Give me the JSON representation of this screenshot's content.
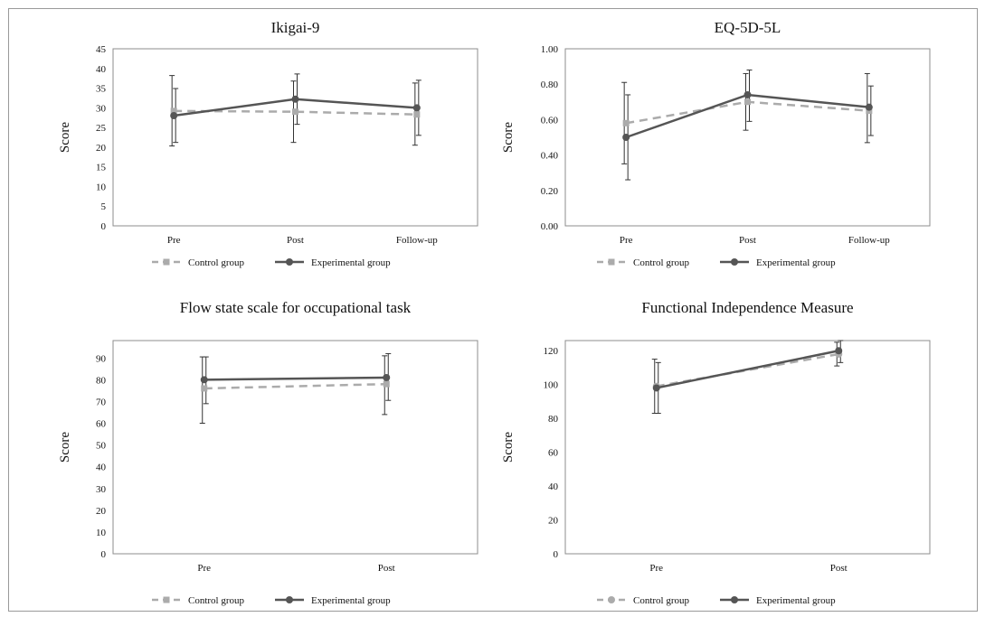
{
  "chart_data": [
    {
      "type": "line",
      "title": "Ikigai-9",
      "ylabel": "Score",
      "categories": [
        "Pre",
        "Post",
        "Follow-up"
      ],
      "ylim": [
        0,
        45
      ],
      "yticks": [
        "0",
        "5",
        "10",
        "15",
        "20",
        "25",
        "30",
        "35",
        "40",
        "45"
      ],
      "series": [
        {
          "name": "Control group",
          "values": [
            29.2,
            29.0,
            28.3
          ],
          "err_low": [
            20.3,
            21.2,
            20.5
          ],
          "err_high": [
            38.2,
            36.8,
            36.3
          ],
          "color": "#ababab",
          "style": "dashed",
          "marker": "square"
        },
        {
          "name": "Experimental group",
          "values": [
            28.0,
            32.2,
            30.0
          ],
          "err_low": [
            21.2,
            25.8,
            23.0
          ],
          "err_high": [
            34.9,
            38.6,
            37.0
          ],
          "color": "#555555",
          "style": "solid",
          "marker": "circle"
        }
      ],
      "legend": "bottom"
    },
    {
      "type": "line",
      "title": "EQ-5D-5L",
      "ylabel": "Score",
      "categories": [
        "Pre",
        "Post",
        "Follow-up"
      ],
      "ylim": [
        0,
        1.0
      ],
      "yticks": [
        "0.00",
        "0.20",
        "0.40",
        "0.60",
        "0.80",
        "1.00"
      ],
      "series": [
        {
          "name": "Control group",
          "values": [
            0.58,
            0.7,
            0.65
          ],
          "err_low": [
            0.35,
            0.54,
            0.47
          ],
          "err_high": [
            0.81,
            0.86,
            0.86
          ],
          "color": "#ababab",
          "style": "dashed",
          "marker": "square"
        },
        {
          "name": "Experimental group",
          "values": [
            0.5,
            0.74,
            0.67
          ],
          "err_low": [
            0.26,
            0.59,
            0.51
          ],
          "err_high": [
            0.74,
            0.88,
            0.79
          ],
          "color": "#555555",
          "style": "solid",
          "marker": "circle"
        }
      ],
      "legend": "bottom"
    },
    {
      "type": "line",
      "title": "Flow state scale for occupational task",
      "ylabel": "Score",
      "categories": [
        "Pre",
        "Post"
      ],
      "ylim": [
        0,
        98
      ],
      "yticks": [
        "0",
        "10",
        "20",
        "30",
        "40",
        "50",
        "60",
        "70",
        "80",
        "90"
      ],
      "yticks_values": [
        0,
        10,
        20,
        30,
        40,
        50,
        60,
        70,
        80,
        90
      ],
      "series": [
        {
          "name": "Control group",
          "values": [
            76.0,
            78.0
          ],
          "err_low": [
            60.0,
            64.0
          ],
          "err_high": [
            90.5,
            91.0
          ],
          "color": "#ababab",
          "style": "dashed",
          "marker": "square"
        },
        {
          "name": "Experimental group",
          "values": [
            80.0,
            81.0
          ],
          "err_low": [
            69.0,
            70.5
          ],
          "err_high": [
            90.5,
            92.0
          ],
          "color": "#555555",
          "style": "solid",
          "marker": "circle"
        }
      ],
      "legend": "bottom"
    },
    {
      "type": "line",
      "title": "Functional Independence Measure",
      "ylabel": "Score",
      "categories": [
        "Pre",
        "Post"
      ],
      "ylim": [
        0,
        126
      ],
      "yticks": [
        "0",
        "20",
        "40",
        "60",
        "80",
        "100",
        "120"
      ],
      "yticks_values": [
        0,
        20,
        40,
        60,
        80,
        100,
        120
      ],
      "series": [
        {
          "name": "Control group",
          "values": [
            99.0,
            118.0
          ],
          "err_low": [
            83.0,
            111.0
          ],
          "err_high": [
            115.0,
            125.0
          ],
          "color": "#ababab",
          "style": "dashed",
          "marker": "circle"
        },
        {
          "name": "Experimental group",
          "values": [
            98.0,
            120.0
          ],
          "err_low": [
            83.0,
            113.0
          ],
          "err_high": [
            113.0,
            126.0
          ],
          "color": "#555555",
          "style": "solid",
          "marker": "circle"
        }
      ],
      "legend": "bottom"
    }
  ]
}
